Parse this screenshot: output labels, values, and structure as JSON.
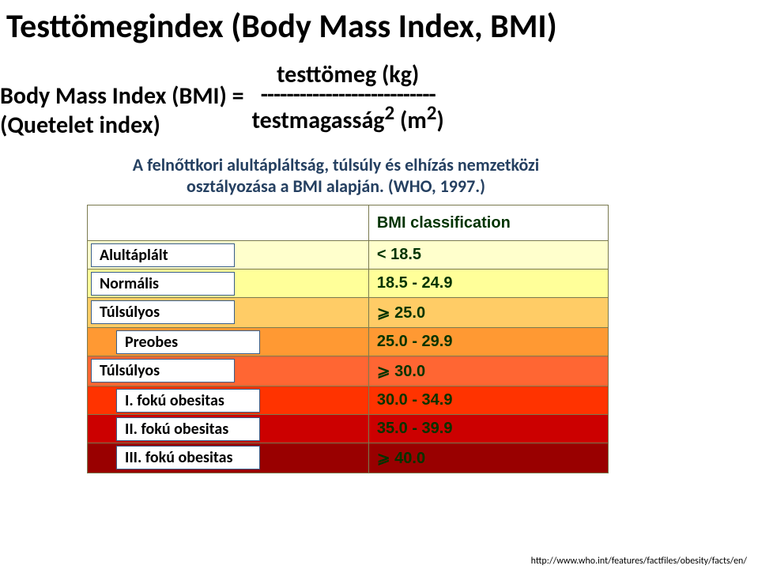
{
  "title": "Testtömegindex (Body Mass Index, BMI)",
  "formula": {
    "left_line1": "Body Mass Index (BMI)  =",
    "left_line2": "(Quetelet index)",
    "numerator": "testtömeg (kg)",
    "dashes": "---------------------------",
    "denominator": "testmagasság",
    "unit": " (m",
    "sup": "2",
    "close": ")"
  },
  "subhead_line1": "A felnőttkori alultápláltság, túlsúly és elhízás nemzetközi",
  "subhead_line2": "osztályozása a BMI alapján. (WHO, 1997.)",
  "table": {
    "header_right": "BMI classification",
    "rows": [
      {
        "cls": "row-underweight",
        "label": "Alultáplált",
        "indent": false,
        "value": "< 18.5"
      },
      {
        "cls": "row-normal",
        "label": "Normális",
        "indent": false,
        "value": "18.5 - 24.9"
      },
      {
        "cls": "row-over1",
        "label": "Túlsúlyos",
        "indent": false,
        "value": "⩾ 25.0"
      },
      {
        "cls": "row-pre",
        "label": "Preobes",
        "indent": true,
        "value": "25.0 - 29.9"
      },
      {
        "cls": "row-obese",
        "label": "Túlsúlyos",
        "indent": false,
        "value": "⩾ 30.0"
      },
      {
        "cls": "row-ob1",
        "label": "I. fokú obesitas",
        "indent": true,
        "value": "30.0 - 34.9"
      },
      {
        "cls": "row-ob2",
        "label": "II. fokú obesitas",
        "indent": true,
        "value": "35.0 - 39.9"
      },
      {
        "cls": "row-ob3",
        "label": "III. fokú obesitas",
        "indent": true,
        "value": "⩾ 40.0"
      }
    ]
  },
  "footer": "http://www.who.int/features/factfiles/obesity/facts/en/",
  "colors": {
    "title": "#000000",
    "subhead": "#254061",
    "cell_border": "#7a7a4f",
    "overlay_border": "#385d8a",
    "value_text": "#003300"
  }
}
